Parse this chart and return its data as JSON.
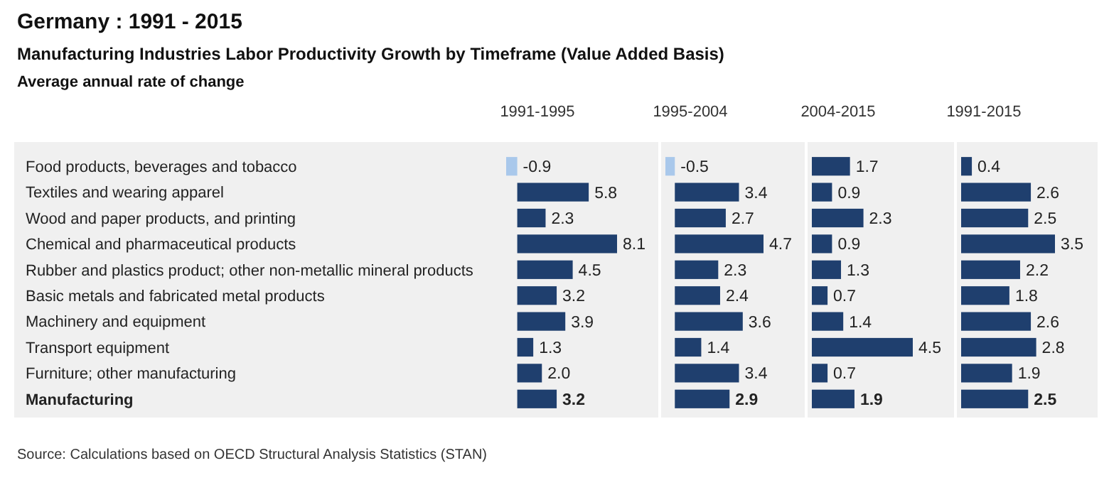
{
  "chart_data": [
    {
      "type": "bar",
      "orientation": "horizontal",
      "title": "1991-1995",
      "tick_labels": "y",
      "annotations": [
        "Germany : 1991 - 2015",
        "Manufacturing Industries Labor Productivity Growth by Timeframe (Value Added Basis)",
        "Average annual rate of change",
        "Source: Calculations based on OECD Structural Analysis Statistics (STAN)"
      ],
      "categories": [
        "Food products, beverages and tobacco",
        "Textiles and wearing apparel",
        "Wood and paper products, and printing",
        "Chemical and pharmaceutical products",
        "Rubber and plastics product; other non-metallic mineral products",
        "Basic metals and fabricated metal products",
        "Machinery and equipment",
        "Transport equipment",
        "Furniture; other manufacturing",
        "Manufacturing"
      ],
      "values": [
        -0.9,
        5.8,
        2.3,
        8.1,
        4.5,
        3.2,
        3.9,
        1.3,
        2.0,
        3.2
      ],
      "value_labels": [
        "-0.9",
        "5.8",
        "2.3",
        "8.1",
        "4.5",
        "3.2",
        "3.9",
        "1.3",
        "2.0",
        "3.2"
      ],
      "colors": [
        "#a9c8eb",
        "#1f3f6e",
        "#1f3f6e",
        "#1f3f6e",
        "#1f3f6e",
        "#1f3f6e",
        "#1f3f6e",
        "#1f3f6e",
        "#1f3f6e",
        "#1f3f6e"
      ]
    },
    {
      "type": "bar",
      "orientation": "horizontal",
      "title": "1995-2004",
      "tick_labels": false,
      "categories": [
        null,
        null,
        null,
        null,
        null,
        null,
        null,
        null,
        null,
        null
      ],
      "values": [
        -0.5,
        3.4,
        2.7,
        4.7,
        2.3,
        2.4,
        3.6,
        1.4,
        3.4,
        2.9
      ],
      "value_labels": [
        "-0.5",
        "3.4",
        "2.7",
        "4.7",
        "2.3",
        "2.4",
        "3.6",
        "1.4",
        "3.4",
        "2.9"
      ],
      "colors": [
        "#a9c8eb",
        "#1f3f6e",
        "#1f3f6e",
        "#1f3f6e",
        "#1f3f6e",
        "#1f3f6e",
        "#1f3f6e",
        "#1f3f6e",
        "#1f3f6e",
        "#1f3f6e"
      ]
    },
    {
      "type": "bar",
      "orientation": "horizontal",
      "title": "2004-2015",
      "tick_labels": false,
      "categories": [
        null,
        null,
        null,
        null,
        null,
        null,
        null,
        null,
        null,
        null
      ],
      "values": [
        1.7,
        0.9,
        2.3,
        0.9,
        1.3,
        0.7,
        1.4,
        4.5,
        0.7,
        1.9
      ],
      "value_labels": [
        "1.7",
        "0.9",
        "2.3",
        "0.9",
        "1.3",
        "0.7",
        "1.4",
        "4.5",
        "0.7",
        "1.9"
      ],
      "colors": [
        "#1f3f6e",
        "#1f3f6e",
        "#1f3f6e",
        "#1f3f6e",
        "#1f3f6e",
        "#1f3f6e",
        "#1f3f6e",
        "#1f3f6e",
        "#1f3f6e",
        "#1f3f6e"
      ]
    },
    {
      "type": "bar",
      "orientation": "horizontal",
      "title": "1991-2015",
      "tick_labels": false,
      "categories": [
        null,
        null,
        null,
        null,
        null,
        null,
        null,
        null,
        null,
        null
      ],
      "values": [
        0.4,
        2.6,
        2.5,
        3.5,
        2.2,
        1.8,
        2.6,
        2.8,
        1.9,
        2.5
      ],
      "value_labels": [
        "0.4",
        "2.6",
        "2.5",
        "3.5",
        "2.2",
        "1.8",
        "2.6",
        "2.8",
        "1.9",
        "2.5"
      ],
      "colors": [
        "#1f3f6e",
        "#1f3f6e",
        "#1f3f6e",
        "#1f3f6e",
        "#1f3f6e",
        "#1f3f6e",
        "#1f3f6e",
        "#1f3f6e",
        "#1f3f6e",
        "#1f3f6e"
      ]
    }
  ]
}
